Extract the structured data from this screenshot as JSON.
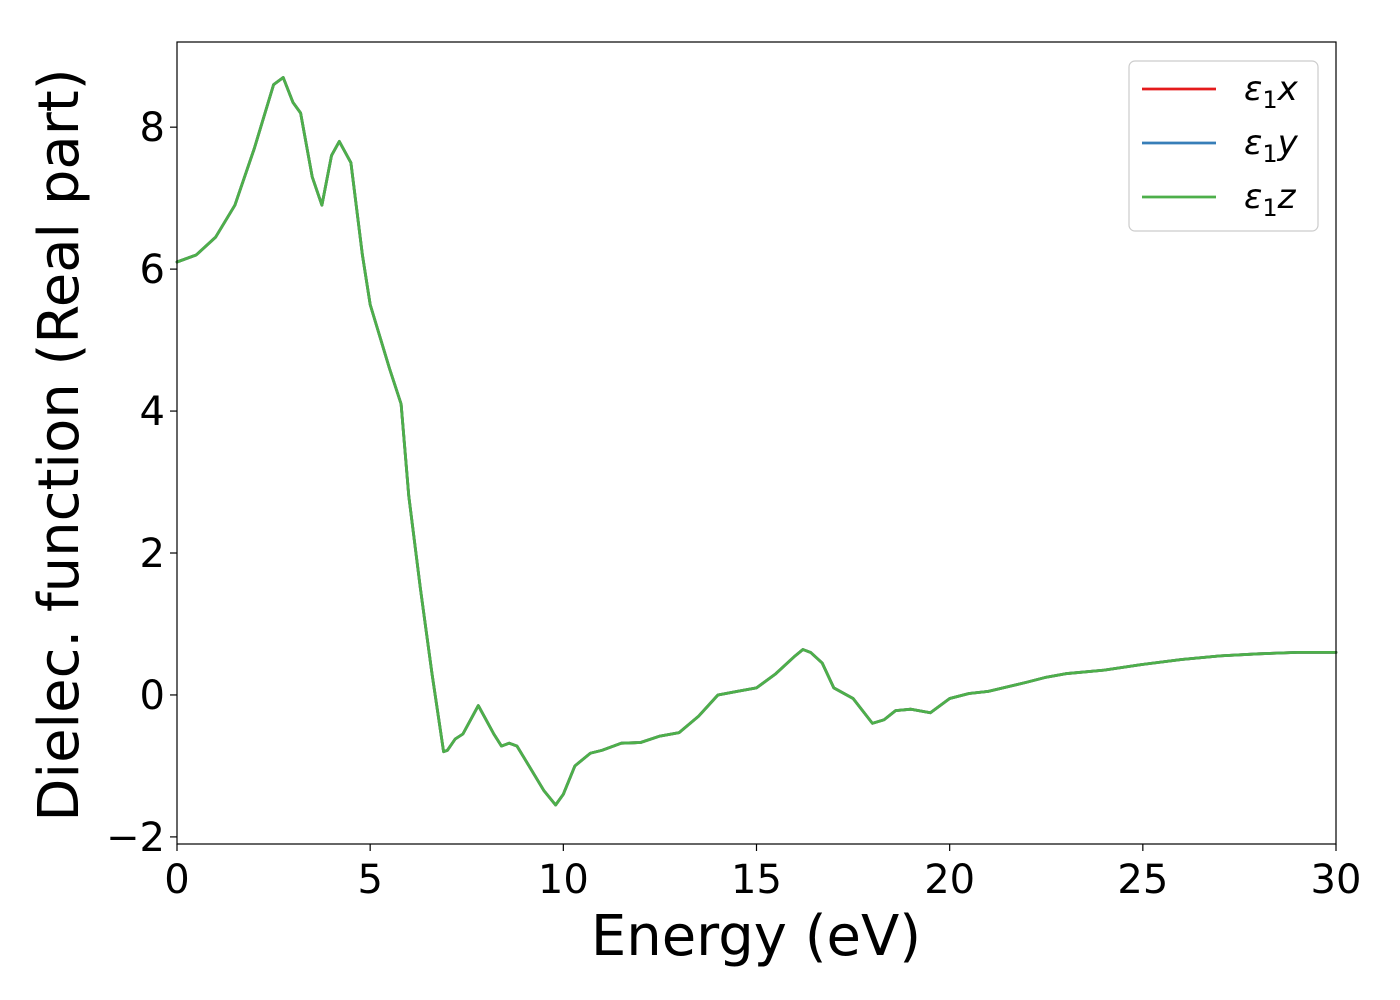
{
  "chart_data": {
    "type": "line",
    "title": "",
    "xlabel": "Energy (eV)",
    "ylabel": "Dielec. function (Real part)",
    "xlim": [
      0,
      30
    ],
    "ylim": [
      -2.1,
      9.2
    ],
    "xticks": [
      0,
      5,
      10,
      15,
      20,
      25,
      30
    ],
    "xtick_labels": [
      "0",
      "5",
      "10",
      "15",
      "20",
      "25",
      "30"
    ],
    "yticks": [
      -2,
      0,
      2,
      4,
      6,
      8
    ],
    "ytick_labels": [
      "−2",
      "0",
      "2",
      "4",
      "6",
      "8"
    ],
    "grid": false,
    "legend_position": "top-right",
    "series": [
      {
        "name": "ε1x",
        "base": "ε",
        "sub": "1",
        "var": "x",
        "color": "#e41a1c",
        "x": [
          0,
          0.5,
          1,
          1.5,
          2,
          2.5,
          2.75,
          3,
          3.2,
          3.5,
          3.75,
          4,
          4.2,
          4.5,
          4.8,
          5,
          5.5,
          5.8,
          6,
          6.3,
          6.6,
          6.9,
          7,
          7.2,
          7.4,
          7.6,
          7.8,
          8,
          8.2,
          8.4,
          8.6,
          8.8,
          9,
          9.5,
          9.8,
          10,
          10.3,
          10.7,
          11,
          11.5,
          12,
          12.5,
          13,
          13.5,
          14,
          14.5,
          15,
          15.5,
          16,
          16.2,
          16.4,
          16.7,
          17,
          17.5,
          18,
          18.3,
          18.6,
          19,
          19.5,
          20,
          20.5,
          21,
          22,
          22.5,
          23,
          24,
          25,
          26,
          27,
          28,
          29,
          30
        ],
        "y": [
          6.1,
          6.2,
          6.45,
          6.9,
          7.7,
          8.6,
          8.7,
          8.35,
          8.2,
          7.3,
          6.9,
          7.6,
          7.8,
          7.5,
          6.2,
          5.5,
          4.6,
          4.1,
          2.8,
          1.5,
          0.3,
          -0.8,
          -0.78,
          -0.62,
          -0.55,
          -0.35,
          -0.15,
          -0.35,
          -0.55,
          -0.72,
          -0.68,
          -0.72,
          -0.9,
          -1.35,
          -1.55,
          -1.4,
          -1.0,
          -0.82,
          -0.78,
          -0.68,
          -0.67,
          -0.58,
          -0.53,
          -0.3,
          0.0,
          0.05,
          0.1,
          0.3,
          0.55,
          0.64,
          0.6,
          0.45,
          0.1,
          -0.05,
          -0.4,
          -0.35,
          -0.22,
          -0.2,
          -0.25,
          -0.05,
          0.02,
          0.05,
          0.18,
          0.25,
          0.3,
          0.35,
          0.43,
          0.5,
          0.55,
          0.58,
          0.6,
          0.6
        ]
      },
      {
        "name": "ε1y",
        "base": "ε",
        "sub": "1",
        "var": "y",
        "color": "#377eb8",
        "x": [
          0,
          0.5,
          1,
          1.5,
          2,
          2.5,
          2.75,
          3,
          3.2,
          3.5,
          3.75,
          4,
          4.2,
          4.5,
          4.8,
          5,
          5.5,
          5.8,
          6,
          6.3,
          6.6,
          6.9,
          7,
          7.2,
          7.4,
          7.6,
          7.8,
          8,
          8.2,
          8.4,
          8.6,
          8.8,
          9,
          9.5,
          9.8,
          10,
          10.3,
          10.7,
          11,
          11.5,
          12,
          12.5,
          13,
          13.5,
          14,
          14.5,
          15,
          15.5,
          16,
          16.2,
          16.4,
          16.7,
          17,
          17.5,
          18,
          18.3,
          18.6,
          19,
          19.5,
          20,
          20.5,
          21,
          22,
          22.5,
          23,
          24,
          25,
          26,
          27,
          28,
          29,
          30
        ],
        "y": [
          6.1,
          6.2,
          6.45,
          6.9,
          7.7,
          8.6,
          8.7,
          8.35,
          8.2,
          7.3,
          6.9,
          7.6,
          7.8,
          7.5,
          6.2,
          5.5,
          4.6,
          4.1,
          2.8,
          1.5,
          0.3,
          -0.8,
          -0.78,
          -0.62,
          -0.55,
          -0.35,
          -0.15,
          -0.35,
          -0.55,
          -0.72,
          -0.68,
          -0.72,
          -0.9,
          -1.35,
          -1.55,
          -1.4,
          -1.0,
          -0.82,
          -0.78,
          -0.68,
          -0.67,
          -0.58,
          -0.53,
          -0.3,
          0.0,
          0.05,
          0.1,
          0.3,
          0.55,
          0.64,
          0.6,
          0.45,
          0.1,
          -0.05,
          -0.4,
          -0.35,
          -0.22,
          -0.2,
          -0.25,
          -0.05,
          0.02,
          0.05,
          0.18,
          0.25,
          0.3,
          0.35,
          0.43,
          0.5,
          0.55,
          0.58,
          0.6,
          0.6
        ]
      },
      {
        "name": "ε1z",
        "base": "ε",
        "sub": "1",
        "var": "z",
        "color": "#4daf4a",
        "x": [
          0,
          0.5,
          1,
          1.5,
          2,
          2.5,
          2.75,
          3,
          3.2,
          3.5,
          3.75,
          4,
          4.2,
          4.5,
          4.8,
          5,
          5.5,
          5.8,
          6,
          6.3,
          6.6,
          6.9,
          7,
          7.2,
          7.4,
          7.6,
          7.8,
          8,
          8.2,
          8.4,
          8.6,
          8.8,
          9,
          9.5,
          9.8,
          10,
          10.3,
          10.7,
          11,
          11.5,
          12,
          12.5,
          13,
          13.5,
          14,
          14.5,
          15,
          15.5,
          16,
          16.2,
          16.4,
          16.7,
          17,
          17.5,
          18,
          18.3,
          18.6,
          19,
          19.5,
          20,
          20.5,
          21,
          22,
          22.5,
          23,
          24,
          25,
          26,
          27,
          28,
          29,
          30
        ],
        "y": [
          6.1,
          6.2,
          6.45,
          6.9,
          7.7,
          8.6,
          8.7,
          8.35,
          8.2,
          7.3,
          6.9,
          7.6,
          7.8,
          7.5,
          6.2,
          5.5,
          4.6,
          4.1,
          2.8,
          1.5,
          0.3,
          -0.8,
          -0.78,
          -0.62,
          -0.55,
          -0.35,
          -0.15,
          -0.35,
          -0.55,
          -0.72,
          -0.68,
          -0.72,
          -0.9,
          -1.35,
          -1.55,
          -1.4,
          -1.0,
          -0.82,
          -0.78,
          -0.68,
          -0.67,
          -0.58,
          -0.53,
          -0.3,
          0.0,
          0.05,
          0.1,
          0.3,
          0.55,
          0.64,
          0.6,
          0.45,
          0.1,
          -0.05,
          -0.4,
          -0.35,
          -0.22,
          -0.2,
          -0.25,
          -0.05,
          0.02,
          0.05,
          0.18,
          0.25,
          0.3,
          0.35,
          0.43,
          0.5,
          0.55,
          0.58,
          0.6,
          0.6
        ]
      }
    ]
  }
}
